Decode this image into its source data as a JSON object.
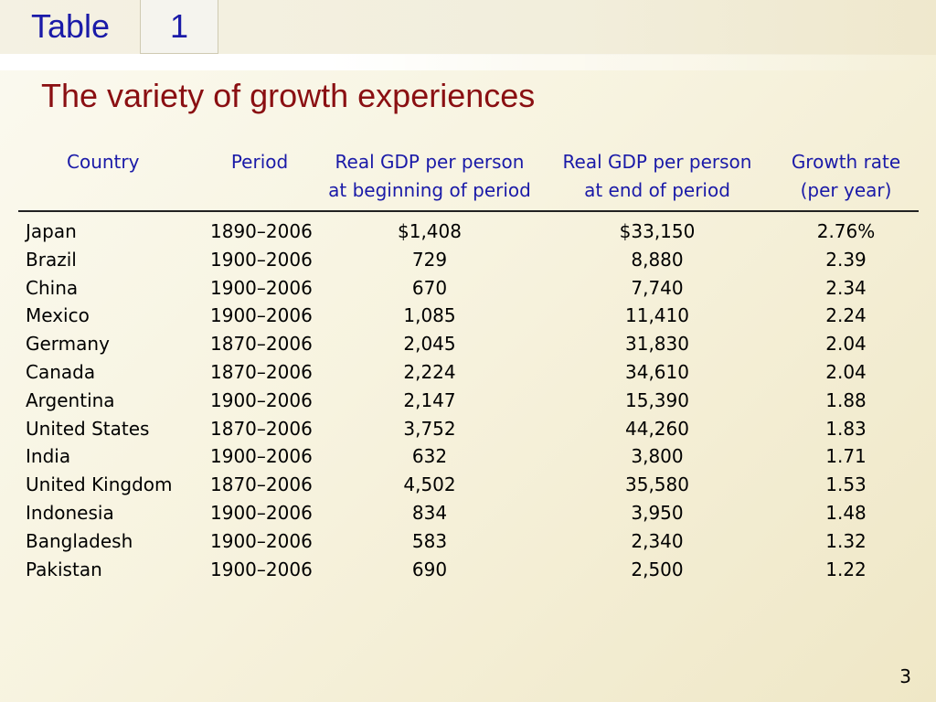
{
  "header": {
    "table_label": "Table",
    "table_number": "1"
  },
  "title": "The variety of growth experiences",
  "table": {
    "columns": [
      [
        "Country"
      ],
      [
        "Period"
      ],
      [
        "Real GDP per person",
        "at beginning of period"
      ],
      [
        "Real GDP per person",
        "at end of period"
      ],
      [
        "Growth rate",
        "(per year)"
      ]
    ],
    "rows": [
      [
        "Japan",
        "1890–2006",
        "$1,408",
        "$33,150",
        "2.76%"
      ],
      [
        "Brazil",
        "1900–2006",
        "729",
        "8,880",
        "2.39"
      ],
      [
        "China",
        "1900–2006",
        "670",
        "7,740",
        "2.34"
      ],
      [
        "Mexico",
        "1900–2006",
        "1,085",
        "11,410",
        "2.24"
      ],
      [
        "Germany",
        "1870–2006",
        "2,045",
        "31,830",
        "2.04"
      ],
      [
        "Canada",
        "1870–2006",
        "2,224",
        "34,610",
        "2.04"
      ],
      [
        "Argentina",
        "1900–2006",
        "2,147",
        "15,390",
        "1.88"
      ],
      [
        "United States",
        "1870–2006",
        "3,752",
        "44,260",
        "1.83"
      ],
      [
        "India",
        "1900–2006",
        "632",
        "3,800",
        "1.71"
      ],
      [
        "United Kingdom",
        "1870–2006",
        "4,502",
        "35,580",
        "1.53"
      ],
      [
        "Indonesia",
        "1900–2006",
        "834",
        "3,950",
        "1.48"
      ],
      [
        "Bangladesh",
        "1900–2006",
        "583",
        "2,340",
        "1.32"
      ],
      [
        "Pakistan",
        "1900–2006",
        "690",
        "2,500",
        "1.22"
      ]
    ]
  },
  "page_number": "3",
  "colors": {
    "header_blue": "#1a1aa8",
    "title_red": "#8a0f12",
    "background": "#f7f3df"
  }
}
